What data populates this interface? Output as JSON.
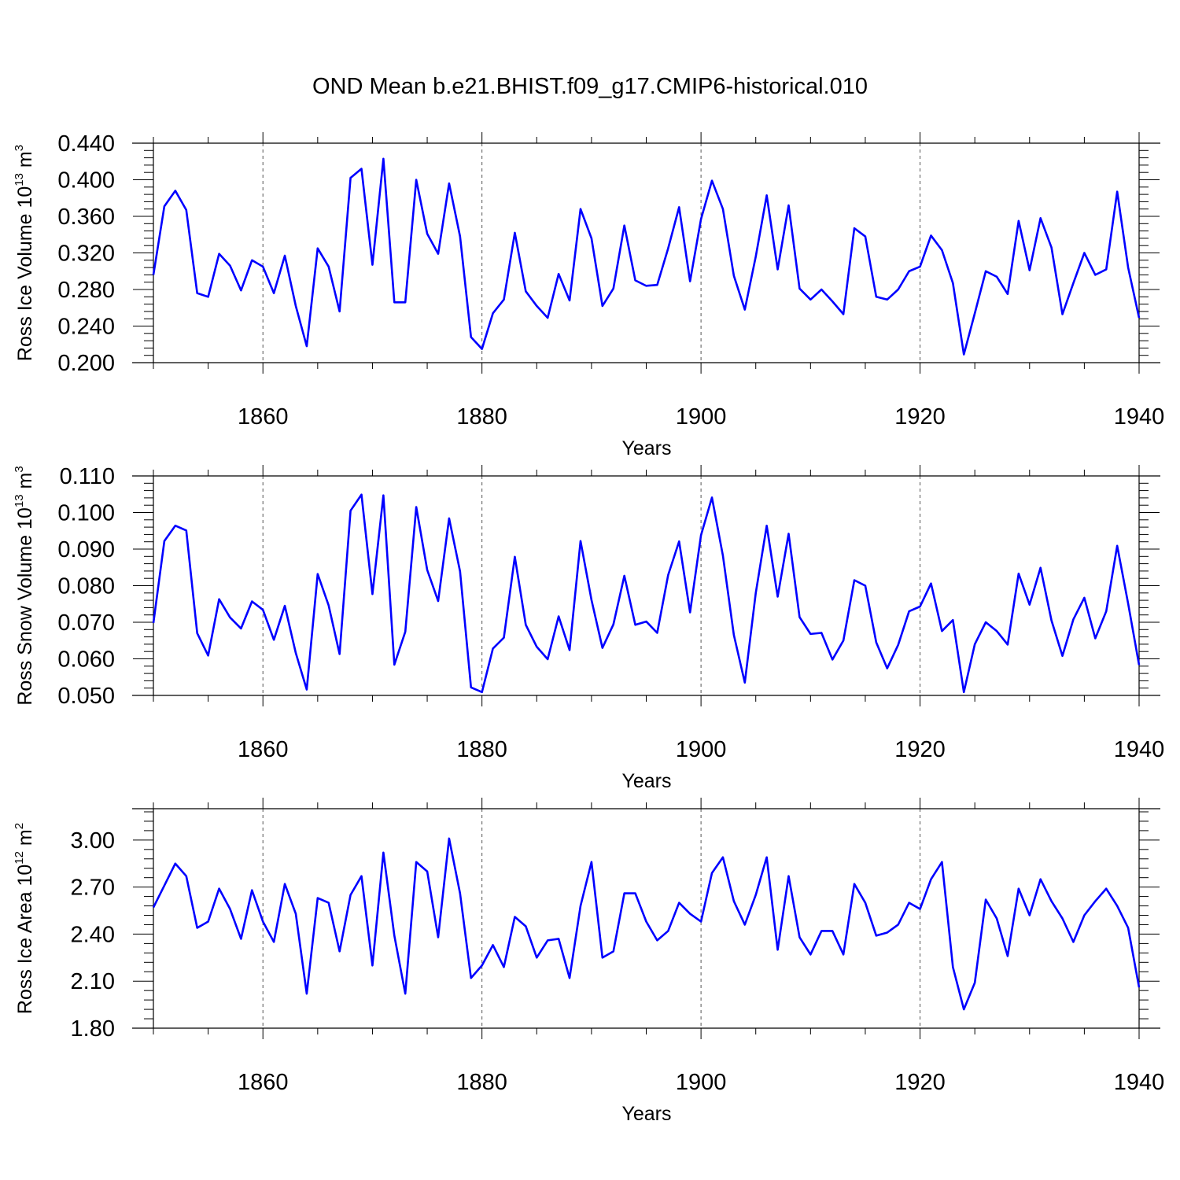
{
  "chart_title": "OND Mean b.e21.BHIST.f09_g17.CMIP6-historical.010",
  "line_color": "#0000ff",
  "chart_data": [
    {
      "type": "line",
      "title": "OND Mean b.e21.BHIST.f09_g17.CMIP6-historical.010",
      "ylabel": {
        "base": "Ross Ice Volume 10",
        "exp": "13",
        "unit": " m",
        "unit_exp": "3"
      },
      "xlabel": "Years",
      "xlim": [
        1850,
        1940
      ],
      "ylim": [
        0.2,
        0.44
      ],
      "xticks": [
        1860,
        1880,
        1900,
        1920,
        1940
      ],
      "xtick_labels": [
        "1860",
        "1880",
        "1900",
        "1920",
        "1940"
      ],
      "yticks": [
        0.2,
        0.24,
        0.28,
        0.32,
        0.36,
        0.4,
        0.44
      ],
      "ytick_labels": [
        "0.200",
        "0.240",
        "0.280",
        "0.320",
        "0.360",
        "0.400",
        "0.440"
      ],
      "series": [
        {
          "name": "Ross Ice Volume",
          "x_start": 1850,
          "values": [
            0.296,
            0.371,
            0.388,
            0.367,
            0.276,
            0.272,
            0.319,
            0.306,
            0.279,
            0.312,
            0.305,
            0.276,
            0.317,
            0.262,
            0.218,
            0.325,
            0.305,
            0.256,
            0.402,
            0.412,
            0.307,
            0.423,
            0.266,
            0.266,
            0.4,
            0.341,
            0.319,
            0.396,
            0.338,
            0.228,
            0.215,
            0.254,
            0.269,
            0.342,
            0.278,
            0.262,
            0.249,
            0.297,
            0.268,
            0.368,
            0.336,
            0.262,
            0.281,
            0.35,
            0.29,
            0.284,
            0.285,
            0.325,
            0.37,
            0.289,
            0.357,
            0.399,
            0.368,
            0.295,
            0.258,
            0.316,
            0.383,
            0.302,
            0.372,
            0.281,
            0.269,
            0.28,
            0.267,
            0.253,
            0.347,
            0.338,
            0.272,
            0.269,
            0.28,
            0.3,
            0.305,
            0.339,
            0.323,
            0.287,
            0.209,
            0.254,
            0.3,
            0.294,
            0.275,
            0.355,
            0.301,
            0.358,
            0.326,
            0.253,
            0.287,
            0.32,
            0.296,
            0.302,
            0.387,
            0.304,
            0.249
          ]
        }
      ]
    },
    {
      "type": "line",
      "ylabel": {
        "base": "Ross Snow Volume 10",
        "exp": "13",
        "unit": " m",
        "unit_exp": "3"
      },
      "xlabel": "Years",
      "xlim": [
        1850,
        1940
      ],
      "ylim": [
        0.05,
        0.11
      ],
      "xticks": [
        1860,
        1880,
        1900,
        1920,
        1940
      ],
      "xtick_labels": [
        "1860",
        "1880",
        "1900",
        "1920",
        "1940"
      ],
      "yticks": [
        0.05,
        0.06,
        0.07,
        0.08,
        0.09,
        0.1,
        0.11
      ],
      "ytick_labels": [
        "0.050",
        "0.060",
        "0.070",
        "0.080",
        "0.090",
        "0.100",
        "0.110"
      ],
      "series": [
        {
          "name": "Ross Snow Volume",
          "x_start": 1850,
          "values": [
            0.0698,
            0.0922,
            0.0964,
            0.0951,
            0.067,
            0.0609,
            0.0763,
            0.0713,
            0.0683,
            0.0757,
            0.0734,
            0.0652,
            0.0745,
            0.0616,
            0.0516,
            0.0832,
            0.0746,
            0.0613,
            0.1005,
            0.1049,
            0.0777,
            0.1047,
            0.0584,
            0.0674,
            0.1015,
            0.0843,
            0.0758,
            0.0984,
            0.0839,
            0.0522,
            0.0509,
            0.0628,
            0.0658,
            0.0879,
            0.0693,
            0.0633,
            0.0599,
            0.0716,
            0.0624,
            0.0922,
            0.0761,
            0.063,
            0.0694,
            0.0827,
            0.0693,
            0.0702,
            0.0671,
            0.0829,
            0.0921,
            0.0727,
            0.0938,
            0.1041,
            0.0882,
            0.0665,
            0.0535,
            0.078,
            0.0964,
            0.077,
            0.0942,
            0.0714,
            0.0668,
            0.0671,
            0.0598,
            0.065,
            0.0815,
            0.08,
            0.0645,
            0.0574,
            0.0638,
            0.073,
            0.0743,
            0.0806,
            0.0676,
            0.0706,
            0.0509,
            0.064,
            0.07,
            0.0676,
            0.0639,
            0.0833,
            0.0748,
            0.0849,
            0.0705,
            0.0608,
            0.0708,
            0.0767,
            0.0656,
            0.073,
            0.0909,
            0.0751,
            0.0583
          ]
        }
      ]
    },
    {
      "type": "line",
      "ylabel": {
        "base": "Ross Ice Area 10",
        "exp": "12",
        "unit": " m",
        "unit_exp": "2"
      },
      "xlabel": "Years",
      "xlim": [
        1850,
        1940
      ],
      "ylim": [
        1.8,
        3.2
      ],
      "xticks": [
        1860,
        1880,
        1900,
        1920,
        1940
      ],
      "xtick_labels": [
        "1860",
        "1880",
        "1900",
        "1920",
        "1940"
      ],
      "yticks": [
        1.8,
        2.1,
        2.4,
        2.7,
        3.0
      ],
      "ytick_labels": [
        "1.80",
        "2.10",
        "2.40",
        "2.70",
        "3.00"
      ],
      "series": [
        {
          "name": "Ross Ice Area",
          "x_start": 1850,
          "values": [
            2.57,
            2.71,
            2.85,
            2.77,
            2.44,
            2.48,
            2.69,
            2.56,
            2.37,
            2.68,
            2.48,
            2.35,
            2.72,
            2.53,
            2.02,
            2.63,
            2.6,
            2.29,
            2.65,
            2.77,
            2.2,
            2.92,
            2.39,
            2.02,
            2.86,
            2.8,
            2.38,
            3.01,
            2.66,
            2.12,
            2.2,
            2.33,
            2.19,
            2.51,
            2.45,
            2.25,
            2.36,
            2.37,
            2.12,
            2.58,
            2.86,
            2.25,
            2.29,
            2.66,
            2.66,
            2.48,
            2.36,
            2.42,
            2.6,
            2.53,
            2.48,
            2.79,
            2.89,
            2.61,
            2.46,
            2.65,
            2.89,
            2.3,
            2.77,
            2.38,
            2.27,
            2.42,
            2.42,
            2.27,
            2.72,
            2.6,
            2.39,
            2.41,
            2.46,
            2.6,
            2.56,
            2.75,
            2.86,
            2.19,
            1.92,
            2.09,
            2.62,
            2.5,
            2.26,
            2.69,
            2.52,
            2.75,
            2.61,
            2.5,
            2.35,
            2.52,
            2.61,
            2.69,
            2.58,
            2.44,
            2.06
          ]
        }
      ]
    }
  ]
}
